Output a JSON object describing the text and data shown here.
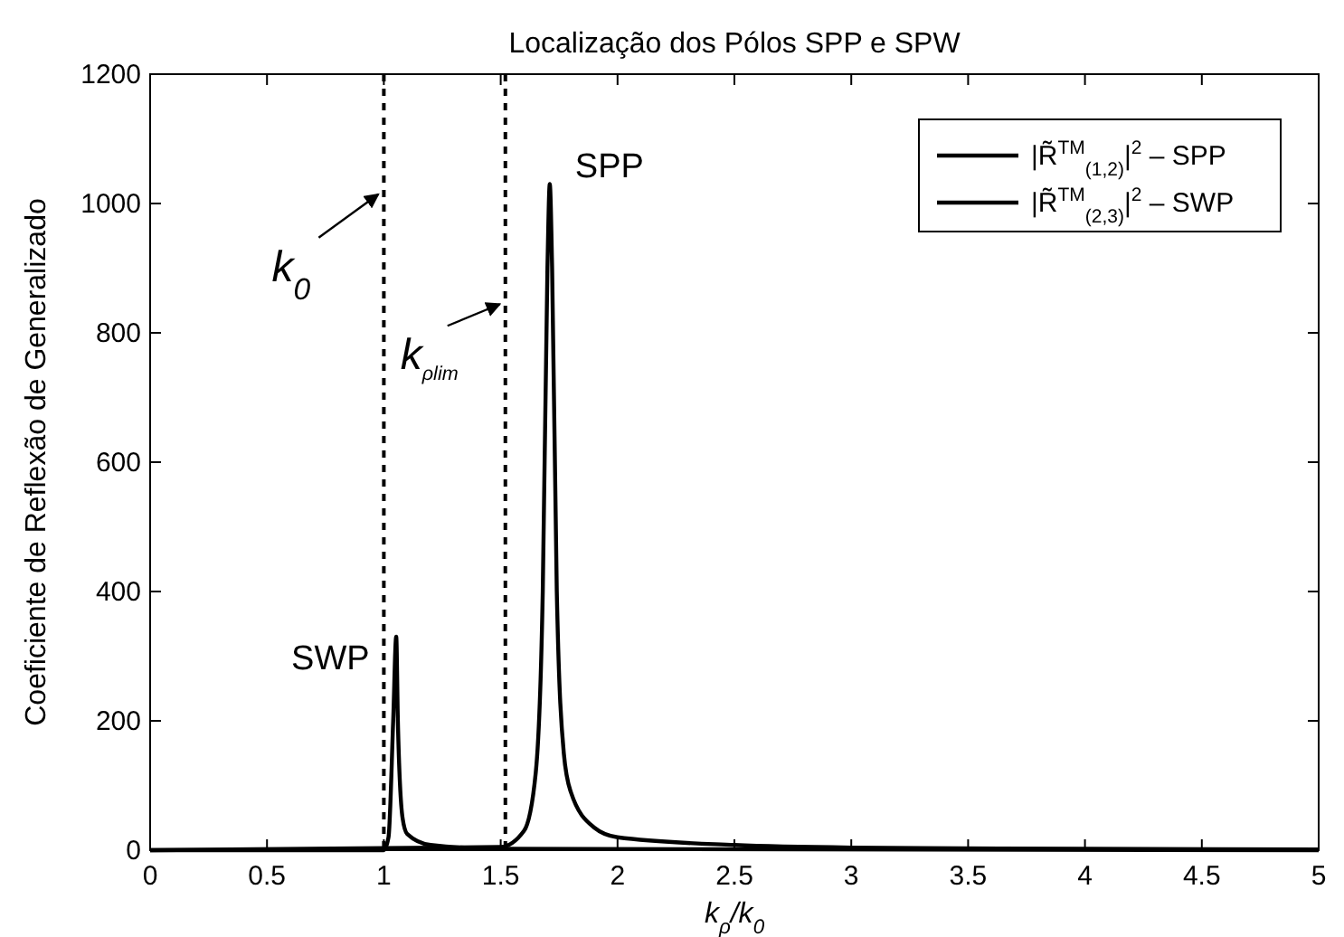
{
  "chart_data": {
    "type": "line",
    "title": "Localização dos Pólos SPP e SPW",
    "xlabel": "k$_{ρ}$/k$_{0}$",
    "ylabel": "Coeficiente de Reflexão de Generalizado",
    "xlim": [
      0,
      5
    ],
    "ylim": [
      0,
      1200
    ],
    "xticks": [
      0,
      0.5,
      1,
      1.5,
      2,
      2.5,
      3,
      3.5,
      4,
      4.5,
      5
    ],
    "yticks": [
      0,
      200,
      400,
      600,
      800,
      1000,
      1200
    ],
    "grid": false,
    "legend": "top right",
    "line_style": "solid",
    "series": [
      {
        "name": "|R̃$^{TM}$$_{(1,2)}$|$^{2}$ – SPP",
        "color": "#000000",
        "x": [
          0,
          1.5,
          1.6,
          1.65,
          1.68,
          1.7,
          1.71,
          1.72,
          1.74,
          1.77,
          1.8,
          1.9,
          2.0,
          2.5,
          3,
          4,
          5
        ],
        "values": [
          0,
          5,
          30,
          120,
          400,
          900,
          1030,
          900,
          400,
          150,
          90,
          35,
          20,
          8,
          4,
          2,
          1
        ]
      },
      {
        "name": "|R̃$^{TM}$$_{(2,3)}$|$^{2}$ – SWP",
        "color": "#000000",
        "x": [
          0,
          1.0,
          1.02,
          1.04,
          1.053,
          1.06,
          1.08,
          1.1,
          1.2,
          1.5,
          5
        ],
        "values": [
          0,
          0,
          20,
          200,
          330,
          200,
          50,
          25,
          8,
          2,
          0
        ]
      }
    ],
    "ref_lines": [
      {
        "axis": "x",
        "value": 1,
        "line_style": "dashed",
        "color": "#000000"
      },
      {
        "axis": "x",
        "value": 1.52,
        "line_style": "dashed",
        "color": "#000000"
      }
    ],
    "annotations": [
      {
        "text": "k$_{0}$",
        "x": 1,
        "y": 1020
      },
      {
        "text": "k$_{ρlim}$",
        "x": 1.52,
        "y": 850
      },
      {
        "text": "SPP",
        "x": 1.71,
        "y": 1030
      },
      {
        "text": "SWP",
        "x": 1.053,
        "y": 330
      }
    ]
  }
}
